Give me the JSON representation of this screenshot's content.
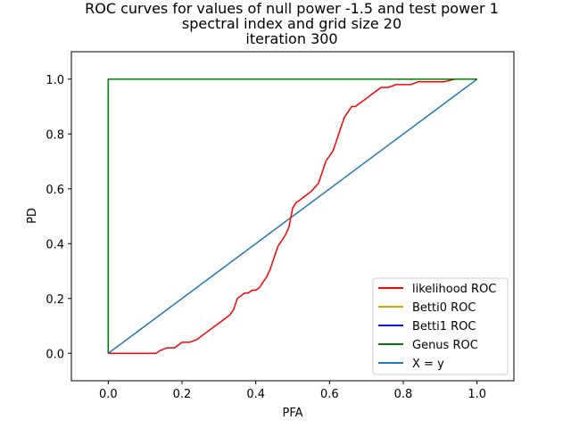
{
  "chart_data": {
    "type": "line",
    "title_lines": [
      "ROC curves for values of null power -1.5 and test power 1",
      "spectral index and grid size 20",
      "iteration 300"
    ],
    "xlabel": "PFA",
    "ylabel": "PD",
    "xlim": [
      -0.1,
      1.1
    ],
    "ylim": [
      -0.1,
      1.1
    ],
    "xticks": [
      0.0,
      0.2,
      0.4,
      0.6,
      0.8,
      1.0
    ],
    "xtick_labels": [
      "0.0",
      "0.2",
      "0.4",
      "0.6",
      "0.8",
      "1.0"
    ],
    "yticks": [
      0.0,
      0.2,
      0.4,
      0.6,
      0.8,
      1.0
    ],
    "ytick_labels": [
      "0.0",
      "0.2",
      "0.4",
      "0.6",
      "0.8",
      "1.0"
    ],
    "grid": false,
    "legend_position": "lower-right",
    "series": [
      {
        "name": "likelihood ROC",
        "color": "#ff0000",
        "x": [
          0.0,
          0.05,
          0.13,
          0.14,
          0.16,
          0.18,
          0.19,
          0.2,
          0.22,
          0.24,
          0.26,
          0.27,
          0.29,
          0.31,
          0.33,
          0.34,
          0.35,
          0.36,
          0.37,
          0.38,
          0.39,
          0.4,
          0.41,
          0.42,
          0.43,
          0.44,
          0.45,
          0.46,
          0.47,
          0.48,
          0.49,
          0.5,
          0.51,
          0.52,
          0.53,
          0.55,
          0.57,
          0.58,
          0.59,
          0.6,
          0.61,
          0.62,
          0.63,
          0.64,
          0.65,
          0.66,
          0.67,
          0.68,
          0.69,
          0.7,
          0.72,
          0.74,
          0.76,
          0.78,
          0.8,
          0.82,
          0.84,
          0.86,
          0.88,
          0.91,
          0.94,
          0.97,
          1.0
        ],
        "y": [
          0.0,
          0.0,
          0.0,
          0.01,
          0.02,
          0.02,
          0.03,
          0.04,
          0.04,
          0.05,
          0.07,
          0.08,
          0.1,
          0.12,
          0.14,
          0.16,
          0.2,
          0.21,
          0.22,
          0.22,
          0.23,
          0.23,
          0.24,
          0.26,
          0.28,
          0.31,
          0.35,
          0.39,
          0.41,
          0.43,
          0.46,
          0.53,
          0.55,
          0.56,
          0.57,
          0.59,
          0.62,
          0.66,
          0.7,
          0.72,
          0.74,
          0.78,
          0.82,
          0.86,
          0.88,
          0.9,
          0.9,
          0.91,
          0.92,
          0.93,
          0.95,
          0.97,
          0.97,
          0.98,
          0.98,
          0.98,
          0.99,
          0.99,
          0.99,
          0.99,
          1.0,
          1.0,
          1.0
        ]
      },
      {
        "name": "Betti0 ROC",
        "color": "#ccaa00",
        "x": [
          0.0,
          0.0,
          1.0
        ],
        "y": [
          0.0,
          1.0,
          1.0
        ]
      },
      {
        "name": "Betti1 ROC",
        "color": "#0000ff",
        "x": [
          0.0,
          0.0,
          1.0
        ],
        "y": [
          0.0,
          1.0,
          1.0
        ]
      },
      {
        "name": "Genus ROC",
        "color": "#008000",
        "x": [
          0.0,
          0.0,
          1.0
        ],
        "y": [
          0.0,
          1.0,
          1.0
        ]
      },
      {
        "name": "X = y",
        "color": "#1f77b4",
        "x": [
          0.0,
          1.0
        ],
        "y": [
          0.0,
          1.0
        ]
      }
    ],
    "draw_order": [
      4,
      0,
      1,
      2,
      3
    ]
  }
}
